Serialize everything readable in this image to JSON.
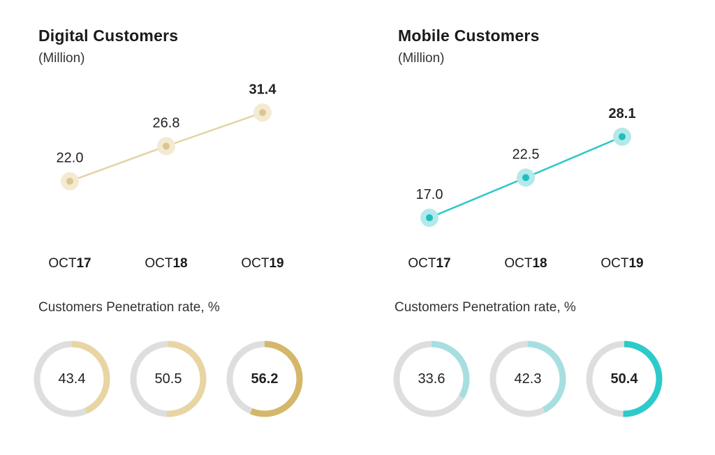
{
  "chart_data": [
    {
      "type": "line",
      "title": "Digital Customers",
      "subtitle": "(Million)",
      "categories": [
        {
          "prefix": "OCT",
          "suffix": "17"
        },
        {
          "prefix": "OCT",
          "suffix": "18"
        },
        {
          "prefix": "OCT",
          "suffix": "19"
        }
      ],
      "values": [
        22.0,
        26.8,
        31.4
      ],
      "value_labels": [
        "22.0",
        "26.8",
        "31.4"
      ],
      "highlight_last": true,
      "colors": {
        "line": "#e5d3a5",
        "point": "#dcc690",
        "halo": "#f3ead3"
      },
      "penetration": {
        "label": "Customers Penetration rate, %",
        "values": [
          43.4,
          50.5,
          56.2
        ],
        "value_labels": [
          "43.4",
          "50.5",
          "56.2"
        ],
        "track_color": "#dedede",
        "arc_colors": [
          "#e8d5a3",
          "#e8d5a3",
          "#d4b76a"
        ]
      }
    },
    {
      "type": "line",
      "title": "Mobile Customers",
      "subtitle": "(Million)",
      "categories": [
        {
          "prefix": "OCT",
          "suffix": "17"
        },
        {
          "prefix": "OCT",
          "suffix": "18"
        },
        {
          "prefix": "OCT",
          "suffix": "19"
        }
      ],
      "values": [
        17.0,
        22.5,
        28.1
      ],
      "value_labels": [
        "17.0",
        "22.5",
        "28.1"
      ],
      "highlight_last": true,
      "colors": {
        "line": "#2ec8c8",
        "point": "#1fbfbf",
        "halo": "#b4e9ea"
      },
      "penetration": {
        "label": "Customers Penetration rate, %",
        "values": [
          33.6,
          42.3,
          50.4
        ],
        "value_labels": [
          "33.6",
          "42.3",
          "50.4"
        ],
        "track_color": "#dedede",
        "arc_colors": [
          "#a7dfe0",
          "#a7dfe0",
          "#2ccaca"
        ]
      }
    }
  ]
}
